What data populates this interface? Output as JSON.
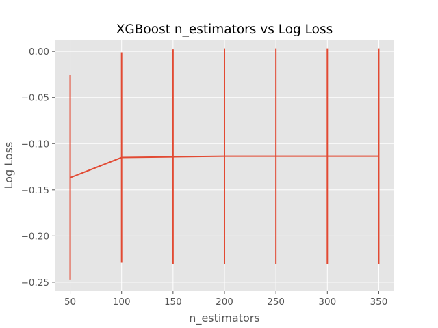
{
  "chart_data": {
    "type": "line",
    "title": "XGBoost n_estimators vs Log Loss",
    "xlabel": "n_estimators",
    "ylabel": "Log Loss",
    "x": [
      50,
      100,
      150,
      200,
      250,
      300,
      350
    ],
    "series": [
      {
        "values": [
          -0.1368,
          -0.115,
          -0.1143,
          -0.1136,
          -0.1136,
          -0.1136,
          -0.1136
        ],
        "error": [
          0.111,
          0.114,
          0.1165,
          0.117,
          0.117,
          0.117,
          0.117
        ],
        "color": "#E24A33"
      }
    ],
    "xticks": [
      "50",
      "100",
      "150",
      "200",
      "250",
      "300",
      "350"
    ],
    "yticks": [
      "0.00",
      "−0.05",
      "−0.10",
      "−0.15",
      "−0.20",
      "−0.25"
    ],
    "ytick_values": [
      0.0,
      -0.05,
      -0.1,
      -0.15,
      -0.2,
      -0.25
    ],
    "xlim": [
      35,
      365
    ],
    "ylim": [
      -0.2597,
      0.0127
    ],
    "grid": true,
    "style": "ggplot",
    "colors": {
      "background": "#E5E5E5",
      "grid": "#FFFFFF",
      "line": "#E24A33"
    }
  }
}
